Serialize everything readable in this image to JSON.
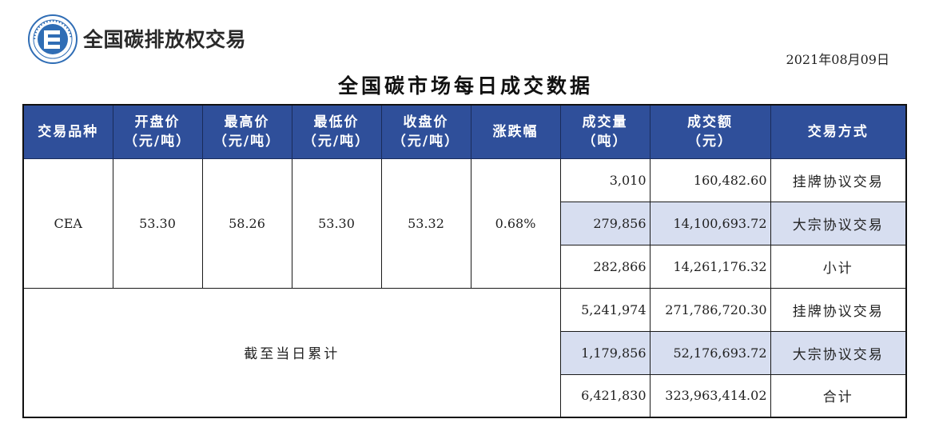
{
  "header": {
    "brand_name": "全国碳排放权交易",
    "date": "2021年08月09日",
    "title": "全国碳市场每日成交数据"
  },
  "colors": {
    "header_bg": "#2f4f9a",
    "highlight_row": "#d7def0",
    "logo_blue": "#2f6db5"
  },
  "table": {
    "columns": [
      {
        "line1": "交易品种",
        "line2": ""
      },
      {
        "line1": "开盘价",
        "line2": "（元/吨）"
      },
      {
        "line1": "最高价",
        "line2": "（元/吨）"
      },
      {
        "line1": "最低价",
        "line2": "（元/吨）"
      },
      {
        "line1": "收盘价",
        "line2": "（元/吨）"
      },
      {
        "line1": "涨跌幅",
        "line2": ""
      },
      {
        "line1": "成交量",
        "line2": "（吨）"
      },
      {
        "line1": "成交额",
        "line2": "（元）"
      },
      {
        "line1": "交易方式",
        "line2": ""
      }
    ],
    "daily": {
      "product": "CEA",
      "open": "53.30",
      "high": "58.26",
      "low": "53.30",
      "close": "53.32",
      "change": "0.68%",
      "rows": [
        {
          "volume": "3,010",
          "amount": "160,482.60",
          "mode": "挂牌协议交易"
        },
        {
          "volume": "279,856",
          "amount": "14,100,693.72",
          "mode": "大宗协议交易"
        },
        {
          "volume": "282,866",
          "amount": "14,261,176.32",
          "mode": "小计"
        }
      ]
    },
    "cumulative": {
      "label": "截至当日累计",
      "rows": [
        {
          "volume": "5,241,974",
          "amount": "271,786,720.30",
          "mode": "挂牌协议交易"
        },
        {
          "volume": "1,179,856",
          "amount": "52,176,693.72",
          "mode": "大宗协议交易"
        },
        {
          "volume": "6,421,830",
          "amount": "323,963,414.02",
          "mode": "合计"
        }
      ]
    }
  }
}
